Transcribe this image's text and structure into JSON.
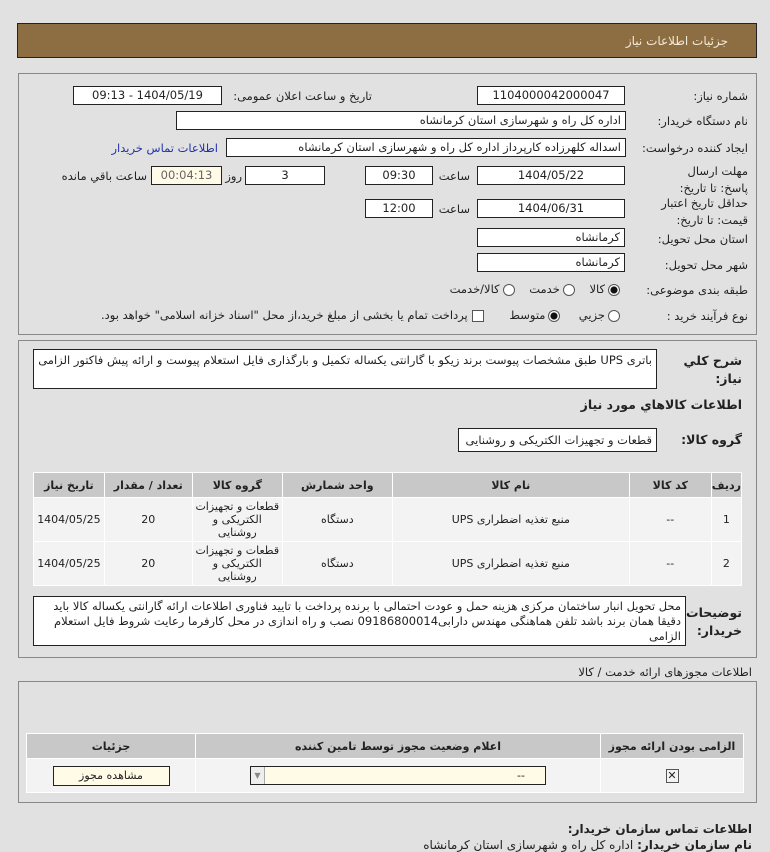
{
  "header": {
    "title": "جزئیات اطلاعات نیاز"
  },
  "form": {
    "need_number_label": "شماره نیاز:",
    "need_number": "1104000042000047",
    "announce_label": "تاریخ و ساعت اعلان عمومی:",
    "announce_value": "1404/05/19 - 09:13",
    "buyer_label": "نام دستگاه خریدار:",
    "buyer": "اداره کل راه و شهرسازی استان کرمانشاه",
    "creator_label": "ایجاد کننده درخواست:",
    "creator": "اسداله کلهرزاده کارپرداز اداره کل راه و شهرسازی استان کرمانشاه",
    "contact_link": "اطلاعات تماس خریدار",
    "deadline_label": "مهلت ارسال پاسخ: تا تاریخ:",
    "deadline_date": "1404/05/22",
    "time_label": "ساعت",
    "deadline_time": "09:30",
    "days": "3",
    "days_label": "روز و",
    "remaining": "00:04:13",
    "remaining_label": "ساعت باقي مانده",
    "validity_label": "حداقل تاریخ اعتبار قیمت: تا تاریخ:",
    "validity_date": "1404/06/31",
    "validity_time": "12:00",
    "province_label": "استان محل تحویل:",
    "province": "کرمانشاه",
    "city_label": "شهر محل تحویل:",
    "city": "کرمانشاه",
    "category_label": "طبقه بندی موضوعی:",
    "category_options": [
      "کالا",
      "خدمت",
      "کالا/خدمت"
    ],
    "category_selected": "کالا",
    "process_label": "نوع فرآیند خرید :",
    "process_options": [
      "جزیي",
      "متوسط"
    ],
    "process_selected": "متوسط",
    "payment_note": "پرداخت تمام یا بخشی از مبلغ خرید،از محل \"اسناد خزانه اسلامی\" خواهد بود."
  },
  "details": {
    "desc_label": "شرح کلي نياز:",
    "desc": "باتری UPS طبق مشخصات پیوست برند زیکو با گارانتی یکساله تکمیل و بارگذاری فایل استعلام پیوست و ارائه پیش فاکتور الزامی",
    "goods_title": "اطلاعات كالاهاي مورد نياز",
    "group_label": "گروه کالا:",
    "group": "قطعات و تجهیزات الکتریکی و روشنایی",
    "table_headers": [
      "ردیف",
      "کد کالا",
      "نام کالا",
      "واحد شمارش",
      "گروه کالا",
      "تعداد / مقدار",
      "تاریخ نیاز"
    ],
    "rows": [
      [
        "1",
        "--",
        "منبع تغذیه اضطراری UPS",
        "دستگاه",
        "قطعات و تجهیزات الکتریکی و روشنایی",
        "20",
        "1404/05/25"
      ],
      [
        "2",
        "--",
        "منبع تغذیه اضطراری UPS",
        "دستگاه",
        "قطعات و تجهیزات الکتریکی و روشنایی",
        "20",
        "1404/05/25"
      ]
    ],
    "notes_label": "توضیحات خریدار:",
    "notes": "محل تحویل انبار ساختمان مرکزی هزینه حمل و عودت احتمالی با برنده پرداخت با تایید فناوری اطلاعات ارائه گارانتی یکساله کالا باید دقیقا همان برند باشد تلفن هماهنگی مهندس دارابی09186800014 نصب و راه اندازی در محل کارفرما رعایت شروط فایل استعلام الزامی"
  },
  "licenses": {
    "title": "اطلاعات مجوزهای ارائه خدمت / کالا",
    "headers": [
      "الزامی بودن ارائه مجوز",
      "اعلام وضعیت مجوز توسط تامین کننده",
      "جزئیات"
    ],
    "status_value": "--",
    "view_button": "مشاهده مجوز"
  },
  "contact": {
    "title": "اطلاعات تماس سازمان خریدار:",
    "org_label": "نام سازمان خریدار:",
    "org": "اداره کل راه و شهرسازی استان کرمانشاه"
  }
}
